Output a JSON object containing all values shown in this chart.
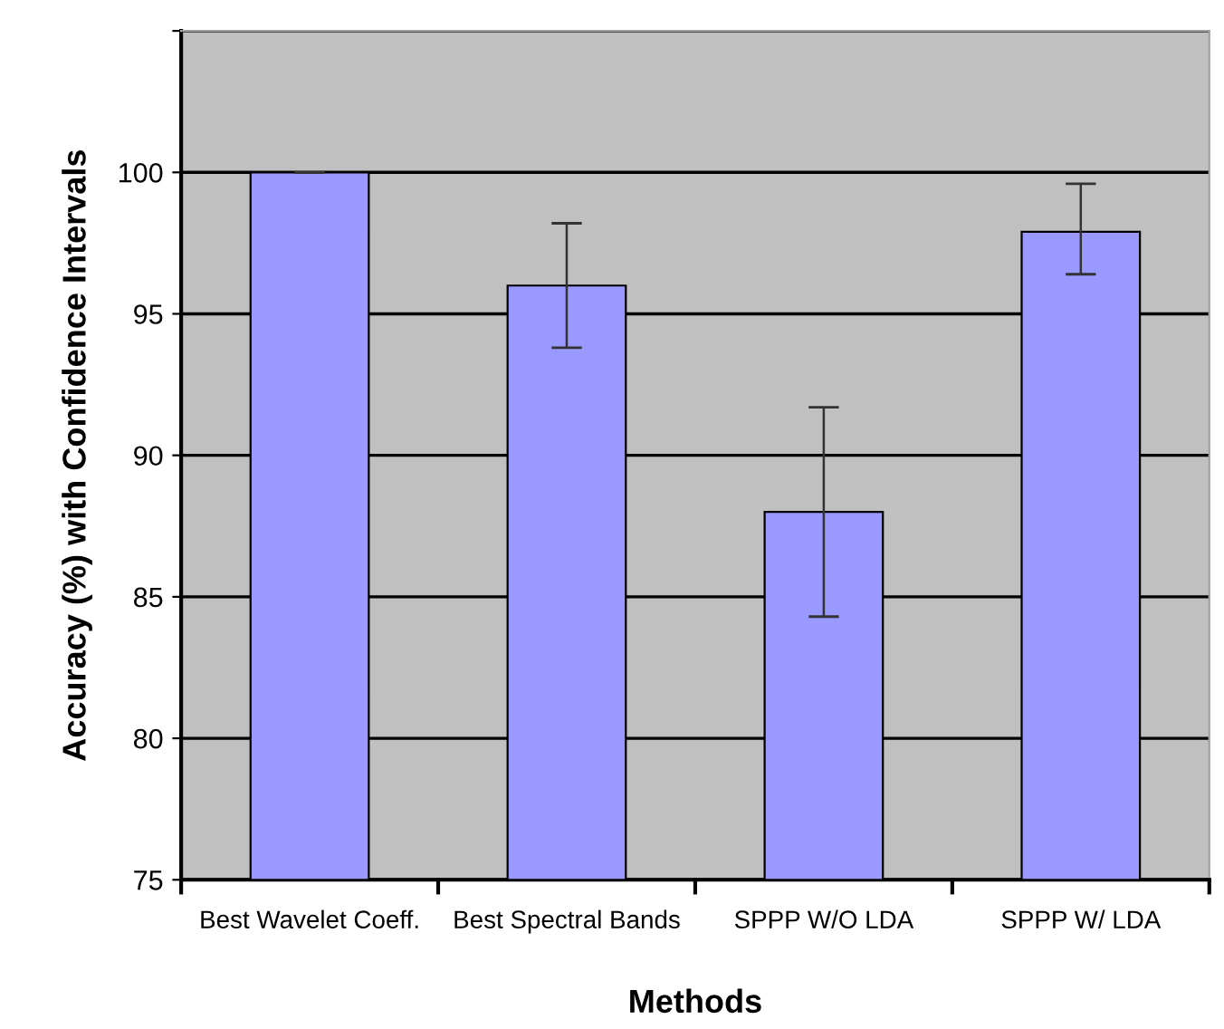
{
  "chart_data": {
    "type": "bar",
    "xlabel": "Methods",
    "ylabel": "Accuracy (%) with Confidence Intervals",
    "categories": [
      "Best Wavelet Coeff.",
      "Best Spectral Bands",
      "SPPP W/O LDA",
      "SPPP W/ LDA"
    ],
    "values": [
      100,
      96,
      88,
      97.9
    ],
    "errors": [
      0,
      [
        93.8,
        98.2
      ],
      [
        84.3,
        91.7
      ],
      [
        96.4,
        99.6
      ]
    ],
    "color": "#9999ff",
    "ylim": [
      75,
      105
    ],
    "yticks": [
      75,
      80,
      85,
      90,
      95,
      100,
      {
        "value": 105,
        "label": null
      }
    ],
    "grid": "y"
  }
}
